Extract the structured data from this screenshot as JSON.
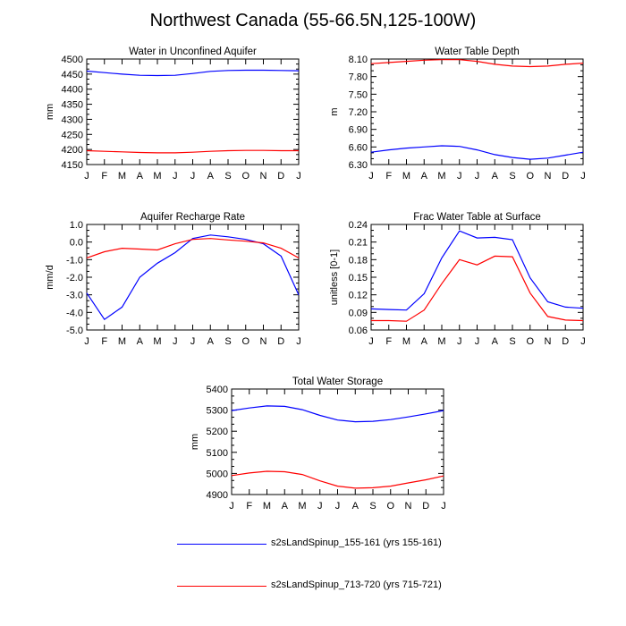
{
  "title": "Northwest Canada (55-66.5N,125-100W)",
  "colors": {
    "run1": "#0000ff",
    "run2": "#ff0000",
    "axis": "#000000"
  },
  "legend": [
    {
      "label": "s2sLandSpinup_155-161 (yrs 155-161)",
      "color": "#0000ff"
    },
    {
      "label": "s2sLandSpinup_713-720 (yrs 715-721)",
      "color": "#ff0000"
    }
  ],
  "chart_data": [
    {
      "type": "line",
      "title": "Water in Unconfined Aquifer",
      "xlabel": "",
      "ylabel": "mm",
      "categories": [
        "J",
        "F",
        "M",
        "A",
        "M",
        "J",
        "J",
        "A",
        "S",
        "O",
        "N",
        "D",
        "J"
      ],
      "ylim": [
        4150,
        4500
      ],
      "yticks": [
        "4150",
        "4200",
        "4250",
        "4300",
        "4350",
        "4400",
        "4450",
        "4500"
      ],
      "series": [
        {
          "name": "s2sLandSpinup_155-161 (yrs 155-161)",
          "values": [
            4460,
            4455,
            4450,
            4446,
            4445,
            4446,
            4452,
            4459,
            4462,
            4463,
            4463,
            4462,
            4461
          ]
        },
        {
          "name": "s2sLandSpinup_713-720 (yrs 715-721)",
          "values": [
            4196,
            4194,
            4192,
            4190,
            4189,
            4189,
            4191,
            4194,
            4196,
            4197,
            4197,
            4196,
            4196
          ]
        }
      ]
    },
    {
      "type": "line",
      "title": "Water Table Depth",
      "xlabel": "",
      "ylabel": "m",
      "categories": [
        "J",
        "F",
        "M",
        "A",
        "M",
        "J",
        "J",
        "A",
        "S",
        "O",
        "N",
        "D",
        "J"
      ],
      "ylim": [
        6.3,
        8.1
      ],
      "yticks": [
        "6.30",
        "6.60",
        "6.90",
        "7.20",
        "7.50",
        "7.80",
        "8.10"
      ],
      "series": [
        {
          "name": "s2sLandSpinup_155-161 (yrs 155-161)",
          "values": [
            6.51,
            6.55,
            6.58,
            6.6,
            6.62,
            6.61,
            6.55,
            6.47,
            6.42,
            6.39,
            6.41,
            6.46,
            6.51
          ]
        },
        {
          "name": "s2sLandSpinup_713-720 (yrs 715-721)",
          "values": [
            8.02,
            8.04,
            8.06,
            8.08,
            8.09,
            8.09,
            8.06,
            8.01,
            7.98,
            7.97,
            7.98,
            8.01,
            8.03
          ]
        }
      ]
    },
    {
      "type": "line",
      "title": "Aquifer Recharge Rate",
      "xlabel": "",
      "ylabel": "mm/d",
      "categories": [
        "J",
        "F",
        "M",
        "A",
        "M",
        "J",
        "J",
        "A",
        "S",
        "O",
        "N",
        "D",
        "J"
      ],
      "ylim": [
        -5.0,
        1.0
      ],
      "yticks": [
        "-5.0",
        "-4.0",
        "-3.0",
        "-2.0",
        "-1.0",
        "0.0",
        "1.0"
      ],
      "series": [
        {
          "name": "s2sLandSpinup_155-161 (yrs 155-161)",
          "values": [
            -2.9,
            -4.4,
            -3.7,
            -2.0,
            -1.2,
            -0.6,
            0.2,
            0.4,
            0.3,
            0.15,
            -0.1,
            -0.8,
            -3.0
          ]
        },
        {
          "name": "s2sLandSpinup_713-720 (yrs 715-721)",
          "values": [
            -0.9,
            -0.55,
            -0.35,
            -0.4,
            -0.45,
            -0.1,
            0.15,
            0.2,
            0.12,
            0.05,
            -0.05,
            -0.35,
            -0.9
          ]
        }
      ]
    },
    {
      "type": "line",
      "title": "Frac Water Table at Surface",
      "xlabel": "",
      "ylabel": "unitless [0-1]",
      "categories": [
        "J",
        "F",
        "M",
        "A",
        "M",
        "J",
        "J",
        "A",
        "S",
        "O",
        "N",
        "D",
        "J"
      ],
      "ylim": [
        0.06,
        0.24
      ],
      "yticks": [
        "0.06",
        "0.09",
        "0.12",
        "0.15",
        "0.18",
        "0.21",
        "0.24"
      ],
      "series": [
        {
          "name": "s2sLandSpinup_155-161 (yrs 155-161)",
          "values": [
            0.096,
            0.095,
            0.094,
            0.122,
            0.183,
            0.229,
            0.217,
            0.218,
            0.214,
            0.149,
            0.108,
            0.099,
            0.097
          ]
        },
        {
          "name": "s2sLandSpinup_713-720 (yrs 715-721)",
          "values": [
            0.076,
            0.076,
            0.075,
            0.094,
            0.139,
            0.18,
            0.171,
            0.186,
            0.185,
            0.123,
            0.083,
            0.077,
            0.076
          ]
        }
      ]
    },
    {
      "type": "line",
      "title": "Total Water Storage",
      "xlabel": "",
      "ylabel": "mm",
      "categories": [
        "J",
        "F",
        "M",
        "A",
        "M",
        "J",
        "J",
        "A",
        "S",
        "O",
        "N",
        "D",
        "J"
      ],
      "ylim": [
        4900,
        5400
      ],
      "yticks": [
        "4900",
        "5000",
        "5100",
        "5200",
        "5300",
        "5400"
      ],
      "series": [
        {
          "name": "s2sLandSpinup_155-161 (yrs 155-161)",
          "values": [
            5298,
            5310,
            5320,
            5318,
            5302,
            5275,
            5253,
            5245,
            5247,
            5255,
            5268,
            5282,
            5298
          ]
        },
        {
          "name": "s2sLandSpinup_713-720 (yrs 715-721)",
          "values": [
            4990,
            5002,
            5010,
            5008,
            4995,
            4965,
            4940,
            4930,
            4932,
            4940,
            4955,
            4970,
            4988
          ]
        }
      ]
    }
  ]
}
